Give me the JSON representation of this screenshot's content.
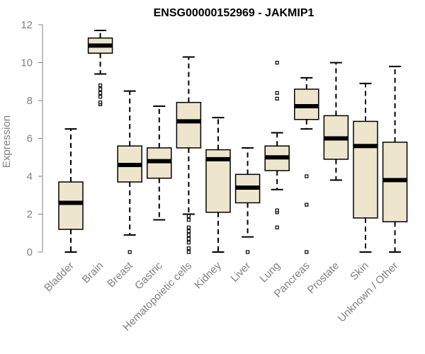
{
  "chart_data": {
    "type": "boxplot",
    "title": "ENSG00000152969 - JAKMIP1",
    "xlabel": "",
    "ylabel": "Expression",
    "ylim": [
      0,
      12
    ],
    "yticks": [
      0,
      2,
      4,
      6,
      8,
      10,
      12
    ],
    "box_fill": "#ede6cc",
    "categories": [
      "Bladder",
      "Brain",
      "Breast",
      "Gastric",
      "Hematopoietic cells",
      "Kidney",
      "Liver",
      "Lung",
      "Pancreas",
      "Prostate",
      "Skin",
      "Unknown / Other"
    ],
    "boxes": [
      {
        "name": "Bladder",
        "whisker_low": 0.0,
        "q1": 1.2,
        "median": 2.6,
        "q3": 3.7,
        "whisker_high": 6.5,
        "outliers": []
      },
      {
        "name": "Brain",
        "whisker_low": 9.4,
        "q1": 10.5,
        "median": 10.9,
        "q3": 11.3,
        "whisker_high": 11.7,
        "outliers": [
          7.8,
          7.9,
          8.2,
          8.4,
          8.6,
          8.8
        ]
      },
      {
        "name": "Breast",
        "whisker_low": 0.9,
        "q1": 3.7,
        "median": 4.6,
        "q3": 5.6,
        "whisker_high": 8.5,
        "outliers": [
          0.0
        ]
      },
      {
        "name": "Gastric",
        "whisker_low": 1.7,
        "q1": 3.9,
        "median": 4.8,
        "q3": 5.5,
        "whisker_high": 7.7,
        "outliers": []
      },
      {
        "name": "Hematopoietic cells",
        "whisker_low": 2.0,
        "q1": 5.5,
        "median": 6.9,
        "q3": 7.9,
        "whisker_high": 10.3,
        "outliers": [
          0.0,
          0.2,
          0.5,
          0.7,
          0.9,
          1.1,
          1.3,
          1.7,
          1.9
        ]
      },
      {
        "name": "Kidney",
        "whisker_low": 0.0,
        "q1": 2.1,
        "median": 4.9,
        "q3": 5.4,
        "whisker_high": 7.1,
        "outliers": []
      },
      {
        "name": "Liver",
        "whisker_low": 0.8,
        "q1": 2.6,
        "median": 3.4,
        "q3": 4.1,
        "whisker_high": 5.5,
        "outliers": [
          0.0
        ]
      },
      {
        "name": "Lung",
        "whisker_low": 3.3,
        "q1": 4.3,
        "median": 5.0,
        "q3": 5.6,
        "whisker_high": 6.3,
        "outliers": [
          1.3,
          2.1,
          2.2,
          8.1,
          8.4,
          10.0
        ]
      },
      {
        "name": "Pancreas",
        "whisker_low": 6.5,
        "q1": 7.0,
        "median": 7.7,
        "q3": 8.6,
        "whisker_high": 9.2,
        "outliers": [
          0.0,
          2.5,
          4.0
        ]
      },
      {
        "name": "Prostate",
        "whisker_low": 3.8,
        "q1": 4.9,
        "median": 6.0,
        "q3": 7.2,
        "whisker_high": 10.0,
        "outliers": []
      },
      {
        "name": "Skin",
        "whisker_low": 0.0,
        "q1": 1.8,
        "median": 5.6,
        "q3": 6.9,
        "whisker_high": 8.9,
        "outliers": []
      },
      {
        "name": "Unknown / Other",
        "whisker_low": 0.0,
        "q1": 1.6,
        "median": 3.8,
        "q3": 5.8,
        "whisker_high": 9.8,
        "outliers": []
      }
    ]
  }
}
